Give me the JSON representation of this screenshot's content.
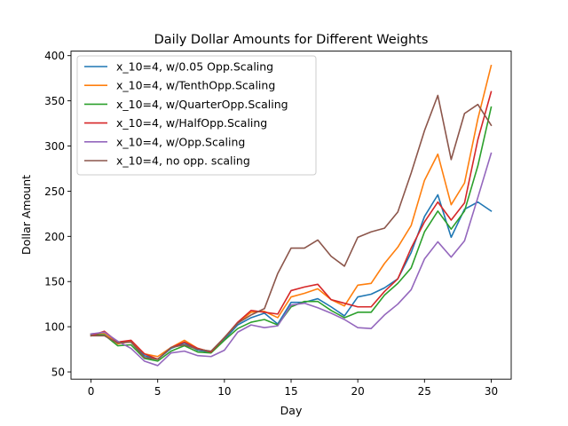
{
  "chart_data": {
    "type": "line",
    "title": "Daily Dollar Amounts for Different Weights",
    "xlabel": "Day",
    "ylabel": "Dollar Amount",
    "xlim": [
      -1.5,
      31.5
    ],
    "ylim": [
      42,
      405
    ],
    "xticks": [
      0,
      5,
      10,
      15,
      20,
      25,
      30
    ],
    "yticks": [
      50,
      100,
      150,
      200,
      250,
      300,
      350,
      400
    ],
    "grid": false,
    "legend_position": "upper left",
    "x": [
      0,
      1,
      2,
      3,
      4,
      5,
      6,
      7,
      8,
      9,
      10,
      11,
      12,
      13,
      14,
      15,
      16,
      17,
      18,
      19,
      20,
      21,
      22,
      23,
      24,
      25,
      26,
      27,
      28,
      29,
      30
    ],
    "series": [
      {
        "name": "x_10=4, w/0.05 Opp.Scaling",
        "color": "#1f77b4",
        "values": [
          92,
          93,
          82,
          84,
          68,
          64,
          76,
          82,
          74,
          72,
          86,
          102,
          110,
          115,
          103,
          127,
          127,
          131,
          122,
          112,
          133,
          136,
          143,
          153,
          182,
          222,
          246,
          199,
          230,
          238,
          228
        ]
      },
      {
        "name": "x_10=4, w/TenthOpp.Scaling",
        "color": "#ff7f0e",
        "values": [
          92,
          93,
          81,
          84,
          70,
          67,
          77,
          85,
          76,
          72,
          88,
          104,
          116,
          117,
          110,
          133,
          137,
          142,
          130,
          123,
          146,
          148,
          170,
          188,
          212,
          262,
          291,
          235,
          259,
          330,
          389
        ]
      },
      {
        "name": "x_10=4, w/QuarterOpp.Scaling",
        "color": "#2ca02c",
        "values": [
          91,
          91,
          79,
          80,
          65,
          62,
          73,
          79,
          72,
          71,
          85,
          98,
          105,
          108,
          102,
          122,
          128,
          128,
          118,
          110,
          116,
          116,
          135,
          148,
          165,
          205,
          228,
          208,
          228,
          278,
          343
        ]
      },
      {
        "name": "x_10=4, w/HalfOpp.Scaling",
        "color": "#d62728",
        "values": [
          90,
          95,
          83,
          85,
          70,
          64,
          77,
          83,
          76,
          72,
          88,
          105,
          118,
          116,
          114,
          140,
          144,
          147,
          130,
          126,
          122,
          122,
          139,
          153,
          187,
          216,
          238,
          218,
          237,
          307,
          360
        ]
      },
      {
        "name": "x_10=4, w/Opp.Scaling",
        "color": "#9467bd",
        "values": [
          92,
          94,
          84,
          76,
          62,
          57,
          71,
          73,
          68,
          67,
          74,
          94,
          102,
          99,
          101,
          124,
          126,
          121,
          115,
          108,
          99,
          98,
          113,
          125,
          141,
          175,
          194,
          177,
          195,
          243,
          292
        ]
      },
      {
        "name": "x_10=4, no opp. scaling",
        "color": "#8c564b",
        "values": [
          90,
          90,
          82,
          83,
          66,
          64,
          77,
          80,
          75,
          73,
          88,
          104,
          113,
          120,
          159,
          187,
          187,
          196,
          178,
          167,
          199,
          205,
          209,
          227,
          270,
          317,
          356,
          285,
          336,
          346,
          323
        ]
      }
    ]
  }
}
